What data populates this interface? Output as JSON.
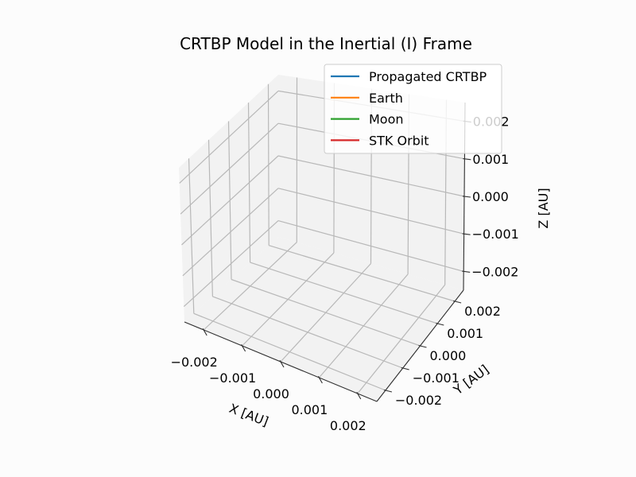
{
  "chart_data": {
    "type": "line",
    "projection": "3d",
    "title": "CRTBP Model in the Inertial (I) Frame",
    "xlabel": "X [AU]",
    "ylabel": "Y [AU]",
    "zlabel": "Z [AU]",
    "xlim": [
      -0.0025,
      0.0025
    ],
    "ylim": [
      -0.0025,
      0.0025
    ],
    "zlim": [
      -0.0025,
      0.0025
    ],
    "x_ticks": [
      -0.002,
      -0.001,
      0.0,
      0.001,
      0.002
    ],
    "y_ticks": [
      -0.002,
      -0.001,
      0.0,
      0.001,
      0.002
    ],
    "z_ticks": [
      -0.002,
      -0.001,
      0.0,
      0.001,
      0.002
    ],
    "x_tick_labels": [
      "−0.002",
      "−0.001",
      "0.000",
      "0.001",
      "0.002"
    ],
    "y_tick_labels": [
      "−0.002",
      "−0.001",
      "0.000",
      "0.001",
      "0.002"
    ],
    "z_tick_labels": [
      "−0.002",
      "−0.001",
      "0.000",
      "0.001",
      "0.002"
    ],
    "grid": true,
    "legend_position": "top-right",
    "series": [
      {
        "name": "Propagated CRTBP",
        "color": "#1f77b4",
        "values": []
      },
      {
        "name": "Earth",
        "color": "#ff7f0e",
        "values": []
      },
      {
        "name": "Moon",
        "color": "#2ca02c",
        "values": []
      },
      {
        "name": "STK Orbit",
        "color": "#d62728",
        "values": []
      }
    ]
  }
}
